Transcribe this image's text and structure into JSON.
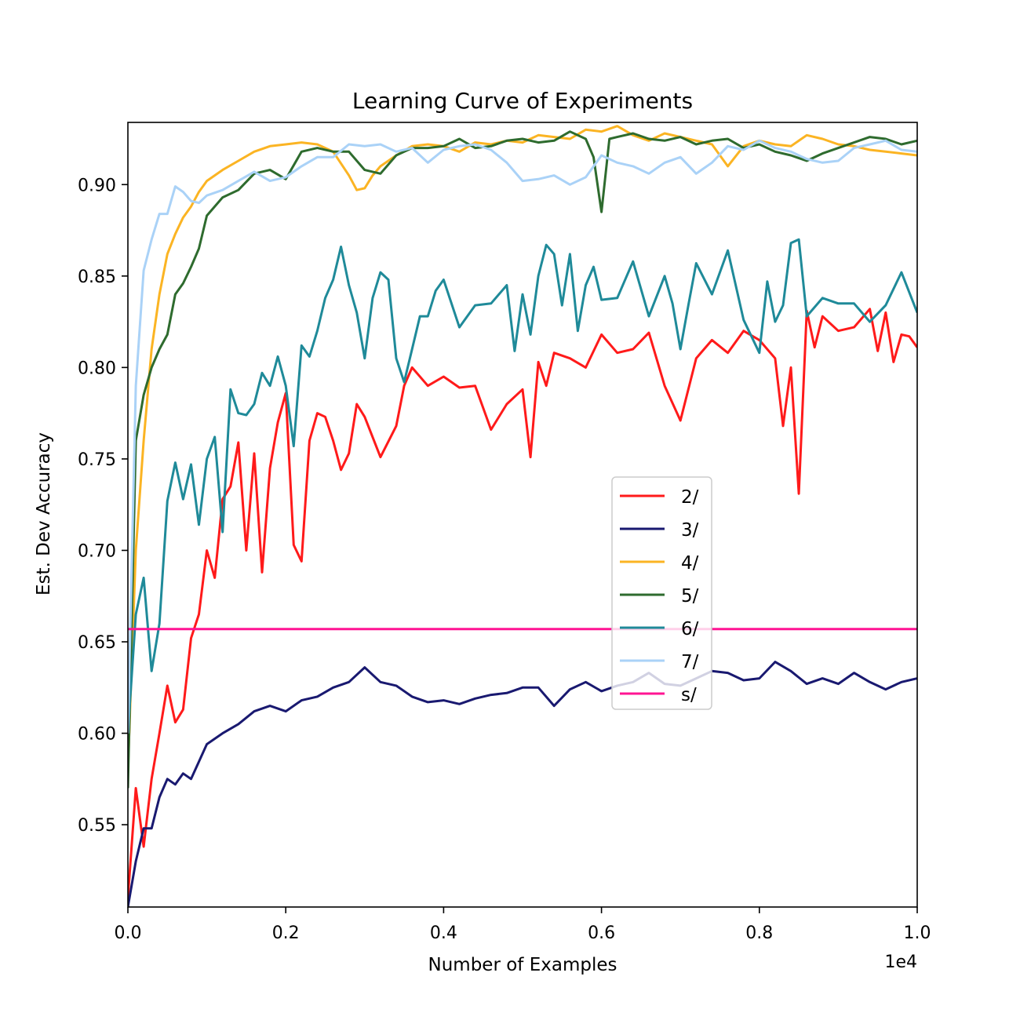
{
  "chart_data": {
    "type": "line",
    "title": "Learning Curve of Experiments",
    "xlabel": "Number of Examples",
    "ylabel": "Est. Dev Accuracy",
    "x_offset_label": "1e4",
    "x_scale_factor": 10000,
    "xlim": [
      0,
      10000
    ],
    "ylim": [
      0.505,
      0.934
    ],
    "x_ticks": [
      0,
      2000,
      4000,
      6000,
      8000,
      10000
    ],
    "x_tick_labels": [
      "0.0",
      "0.2",
      "0.4",
      "0.6",
      "0.8",
      "1.0"
    ],
    "y_ticks": [
      0.55,
      0.6,
      0.65,
      0.7,
      0.75,
      0.8,
      0.85,
      0.9
    ],
    "y_tick_labels": [
      "0.55",
      "0.60",
      "0.65",
      "0.70",
      "0.75",
      "0.80",
      "0.85",
      "0.90"
    ],
    "grid": false,
    "legend_position": "center-right",
    "series": [
      {
        "name": "2/",
        "color": "#ff1a1a",
        "x": [
          0,
          100,
          200,
          300,
          400,
          500,
          600,
          700,
          800,
          900,
          1000,
          1100,
          1200,
          1300,
          1400,
          1500,
          1600,
          1700,
          1800,
          1900,
          2000,
          2100,
          2200,
          2300,
          2400,
          2500,
          2600,
          2700,
          2800,
          2900,
          3000,
          3200,
          3400,
          3500,
          3600,
          3800,
          4000,
          4200,
          4400,
          4600,
          4800,
          5000,
          5100,
          5200,
          5300,
          5400,
          5600,
          5800,
          6000,
          6200,
          6400,
          6600,
          6800,
          7000,
          7200,
          7400,
          7600,
          7800,
          8000,
          8200,
          8300,
          8400,
          8500,
          8600,
          8700,
          8800,
          9000,
          9200,
          9400,
          9500,
          9600,
          9700,
          9800,
          9900,
          10000
        ],
        "values": [
          0.51,
          0.57,
          0.538,
          0.575,
          0.6,
          0.626,
          0.606,
          0.613,
          0.652,
          0.665,
          0.7,
          0.685,
          0.728,
          0.735,
          0.759,
          0.7,
          0.753,
          0.688,
          0.745,
          0.77,
          0.786,
          0.703,
          0.694,
          0.76,
          0.775,
          0.773,
          0.76,
          0.744,
          0.753,
          0.78,
          0.773,
          0.751,
          0.768,
          0.79,
          0.8,
          0.79,
          0.795,
          0.789,
          0.79,
          0.766,
          0.78,
          0.788,
          0.751,
          0.803,
          0.79,
          0.808,
          0.805,
          0.8,
          0.818,
          0.808,
          0.81,
          0.819,
          0.79,
          0.771,
          0.805,
          0.815,
          0.808,
          0.82,
          0.815,
          0.805,
          0.768,
          0.8,
          0.731,
          0.831,
          0.811,
          0.828,
          0.82,
          0.822,
          0.832,
          0.809,
          0.83,
          0.803,
          0.818,
          0.817,
          0.811
        ]
      },
      {
        "name": "3/",
        "color": "#191970",
        "x": [
          0,
          100,
          200,
          300,
          400,
          500,
          600,
          700,
          800,
          1000,
          1200,
          1400,
          1600,
          1800,
          2000,
          2200,
          2400,
          2600,
          2800,
          3000,
          3200,
          3400,
          3600,
          3800,
          4000,
          4200,
          4400,
          4600,
          4800,
          5000,
          5200,
          5400,
          5600,
          5800,
          6000,
          6200,
          6400,
          6600,
          6800,
          7000,
          7200,
          7400,
          7600,
          7800,
          8000,
          8200,
          8400,
          8600,
          8800,
          9000,
          9200,
          9400,
          9600,
          9800,
          10000
        ],
        "values": [
          0.505,
          0.53,
          0.548,
          0.548,
          0.565,
          0.575,
          0.572,
          0.578,
          0.575,
          0.594,
          0.6,
          0.605,
          0.612,
          0.615,
          0.612,
          0.618,
          0.62,
          0.625,
          0.628,
          0.636,
          0.628,
          0.626,
          0.62,
          0.617,
          0.618,
          0.616,
          0.619,
          0.621,
          0.622,
          0.625,
          0.625,
          0.615,
          0.624,
          0.628,
          0.623,
          0.626,
          0.628,
          0.633,
          0.627,
          0.626,
          0.63,
          0.634,
          0.633,
          0.629,
          0.63,
          0.639,
          0.634,
          0.627,
          0.63,
          0.627,
          0.633,
          0.628,
          0.624,
          0.628,
          0.63
        ]
      },
      {
        "name": "4/",
        "color": "#fbb423",
        "x": [
          0,
          100,
          200,
          300,
          400,
          500,
          600,
          700,
          800,
          900,
          1000,
          1200,
          1400,
          1600,
          1800,
          2000,
          2200,
          2400,
          2600,
          2800,
          2900,
          3000,
          3100,
          3200,
          3400,
          3600,
          3800,
          4000,
          4200,
          4400,
          4600,
          4800,
          5000,
          5200,
          5400,
          5600,
          5800,
          6000,
          6200,
          6400,
          6600,
          6800,
          7000,
          7200,
          7400,
          7600,
          7800,
          8000,
          8200,
          8400,
          8600,
          8800,
          9000,
          9200,
          9400,
          9600,
          9800,
          10000
        ],
        "values": [
          0.58,
          0.7,
          0.76,
          0.81,
          0.84,
          0.862,
          0.873,
          0.882,
          0.888,
          0.896,
          0.902,
          0.908,
          0.913,
          0.918,
          0.921,
          0.922,
          0.923,
          0.922,
          0.918,
          0.905,
          0.897,
          0.898,
          0.905,
          0.91,
          0.916,
          0.921,
          0.922,
          0.921,
          0.918,
          0.923,
          0.922,
          0.924,
          0.923,
          0.927,
          0.926,
          0.925,
          0.93,
          0.929,
          0.932,
          0.927,
          0.924,
          0.928,
          0.926,
          0.924,
          0.922,
          0.91,
          0.921,
          0.924,
          0.922,
          0.921,
          0.927,
          0.925,
          0.922,
          0.921,
          0.919,
          0.918,
          0.917,
          0.916
        ]
      },
      {
        "name": "5/",
        "color": "#2e6b2e",
        "x": [
          0,
          100,
          200,
          300,
          400,
          500,
          600,
          700,
          800,
          900,
          1000,
          1200,
          1400,
          1600,
          1800,
          2000,
          2200,
          2400,
          2600,
          2800,
          3000,
          3200,
          3400,
          3600,
          3800,
          4000,
          4200,
          4400,
          4600,
          4800,
          5000,
          5200,
          5400,
          5600,
          5800,
          5900,
          6000,
          6100,
          6200,
          6400,
          6600,
          6800,
          7000,
          7200,
          7400,
          7600,
          7800,
          8000,
          8200,
          8400,
          8600,
          8800,
          9000,
          9200,
          9400,
          9600,
          9800,
          10000
        ],
        "values": [
          0.57,
          0.76,
          0.785,
          0.8,
          0.81,
          0.818,
          0.84,
          0.846,
          0.855,
          0.865,
          0.883,
          0.893,
          0.897,
          0.906,
          0.908,
          0.903,
          0.918,
          0.92,
          0.918,
          0.918,
          0.908,
          0.906,
          0.916,
          0.92,
          0.92,
          0.921,
          0.925,
          0.92,
          0.921,
          0.924,
          0.925,
          0.923,
          0.924,
          0.929,
          0.925,
          0.915,
          0.885,
          0.925,
          0.926,
          0.928,
          0.925,
          0.924,
          0.926,
          0.922,
          0.924,
          0.925,
          0.92,
          0.922,
          0.918,
          0.916,
          0.913,
          0.917,
          0.92,
          0.923,
          0.926,
          0.925,
          0.922,
          0.924
        ]
      },
      {
        "name": "6/",
        "color": "#1f8a99",
        "x": [
          0,
          100,
          200,
          300,
          400,
          500,
          600,
          700,
          800,
          900,
          1000,
          1100,
          1200,
          1300,
          1400,
          1500,
          1600,
          1700,
          1800,
          1900,
          2000,
          2100,
          2200,
          2300,
          2400,
          2500,
          2600,
          2700,
          2800,
          2900,
          3000,
          3100,
          3200,
          3300,
          3400,
          3500,
          3600,
          3700,
          3800,
          3900,
          4000,
          4200,
          4400,
          4600,
          4800,
          4900,
          5000,
          5100,
          5200,
          5300,
          5400,
          5500,
          5600,
          5700,
          5800,
          5900,
          6000,
          6200,
          6400,
          6600,
          6800,
          6900,
          7000,
          7100,
          7200,
          7400,
          7600,
          7800,
          8000,
          8100,
          8200,
          8300,
          8400,
          8500,
          8600,
          8800,
          9000,
          9200,
          9400,
          9600,
          9800,
          10000
        ],
        "values": [
          0.6,
          0.665,
          0.685,
          0.634,
          0.66,
          0.727,
          0.748,
          0.728,
          0.747,
          0.714,
          0.75,
          0.762,
          0.71,
          0.788,
          0.775,
          0.774,
          0.78,
          0.797,
          0.79,
          0.806,
          0.79,
          0.757,
          0.812,
          0.806,
          0.82,
          0.838,
          0.848,
          0.866,
          0.845,
          0.83,
          0.805,
          0.838,
          0.852,
          0.848,
          0.805,
          0.792,
          0.81,
          0.828,
          0.828,
          0.842,
          0.848,
          0.822,
          0.834,
          0.835,
          0.845,
          0.809,
          0.84,
          0.818,
          0.85,
          0.867,
          0.862,
          0.834,
          0.862,
          0.82,
          0.845,
          0.855,
          0.837,
          0.838,
          0.858,
          0.828,
          0.85,
          0.835,
          0.81,
          0.834,
          0.857,
          0.84,
          0.864,
          0.826,
          0.808,
          0.847,
          0.825,
          0.834,
          0.868,
          0.87,
          0.828,
          0.838,
          0.835,
          0.835,
          0.825,
          0.834,
          0.852,
          0.83
        ]
      },
      {
        "name": "7/",
        "color": "#aad2f7",
        "x": [
          0,
          100,
          200,
          300,
          400,
          500,
          600,
          700,
          800,
          900,
          1000,
          1200,
          1400,
          1600,
          1800,
          2000,
          2200,
          2400,
          2600,
          2800,
          3000,
          3200,
          3400,
          3600,
          3800,
          4000,
          4200,
          4400,
          4600,
          4800,
          5000,
          5200,
          5400,
          5600,
          5800,
          6000,
          6200,
          6400,
          6600,
          6800,
          7000,
          7200,
          7400,
          7600,
          7800,
          8000,
          8200,
          8400,
          8600,
          8800,
          9000,
          9200,
          9400,
          9600,
          9800,
          10000
        ],
        "values": [
          0.6,
          0.79,
          0.853,
          0.87,
          0.884,
          0.884,
          0.899,
          0.896,
          0.891,
          0.89,
          0.894,
          0.897,
          0.902,
          0.907,
          0.902,
          0.904,
          0.91,
          0.915,
          0.915,
          0.922,
          0.921,
          0.922,
          0.918,
          0.92,
          0.912,
          0.919,
          0.921,
          0.922,
          0.919,
          0.912,
          0.902,
          0.903,
          0.905,
          0.9,
          0.904,
          0.916,
          0.912,
          0.91,
          0.906,
          0.912,
          0.915,
          0.906,
          0.912,
          0.921,
          0.919,
          0.924,
          0.92,
          0.918,
          0.914,
          0.912,
          0.913,
          0.92,
          0.922,
          0.924,
          0.919,
          0.918
        ]
      },
      {
        "name": "s/",
        "color": "#ff1493",
        "x": [
          0,
          10000
        ],
        "values": [
          0.657,
          0.657
        ]
      }
    ]
  }
}
